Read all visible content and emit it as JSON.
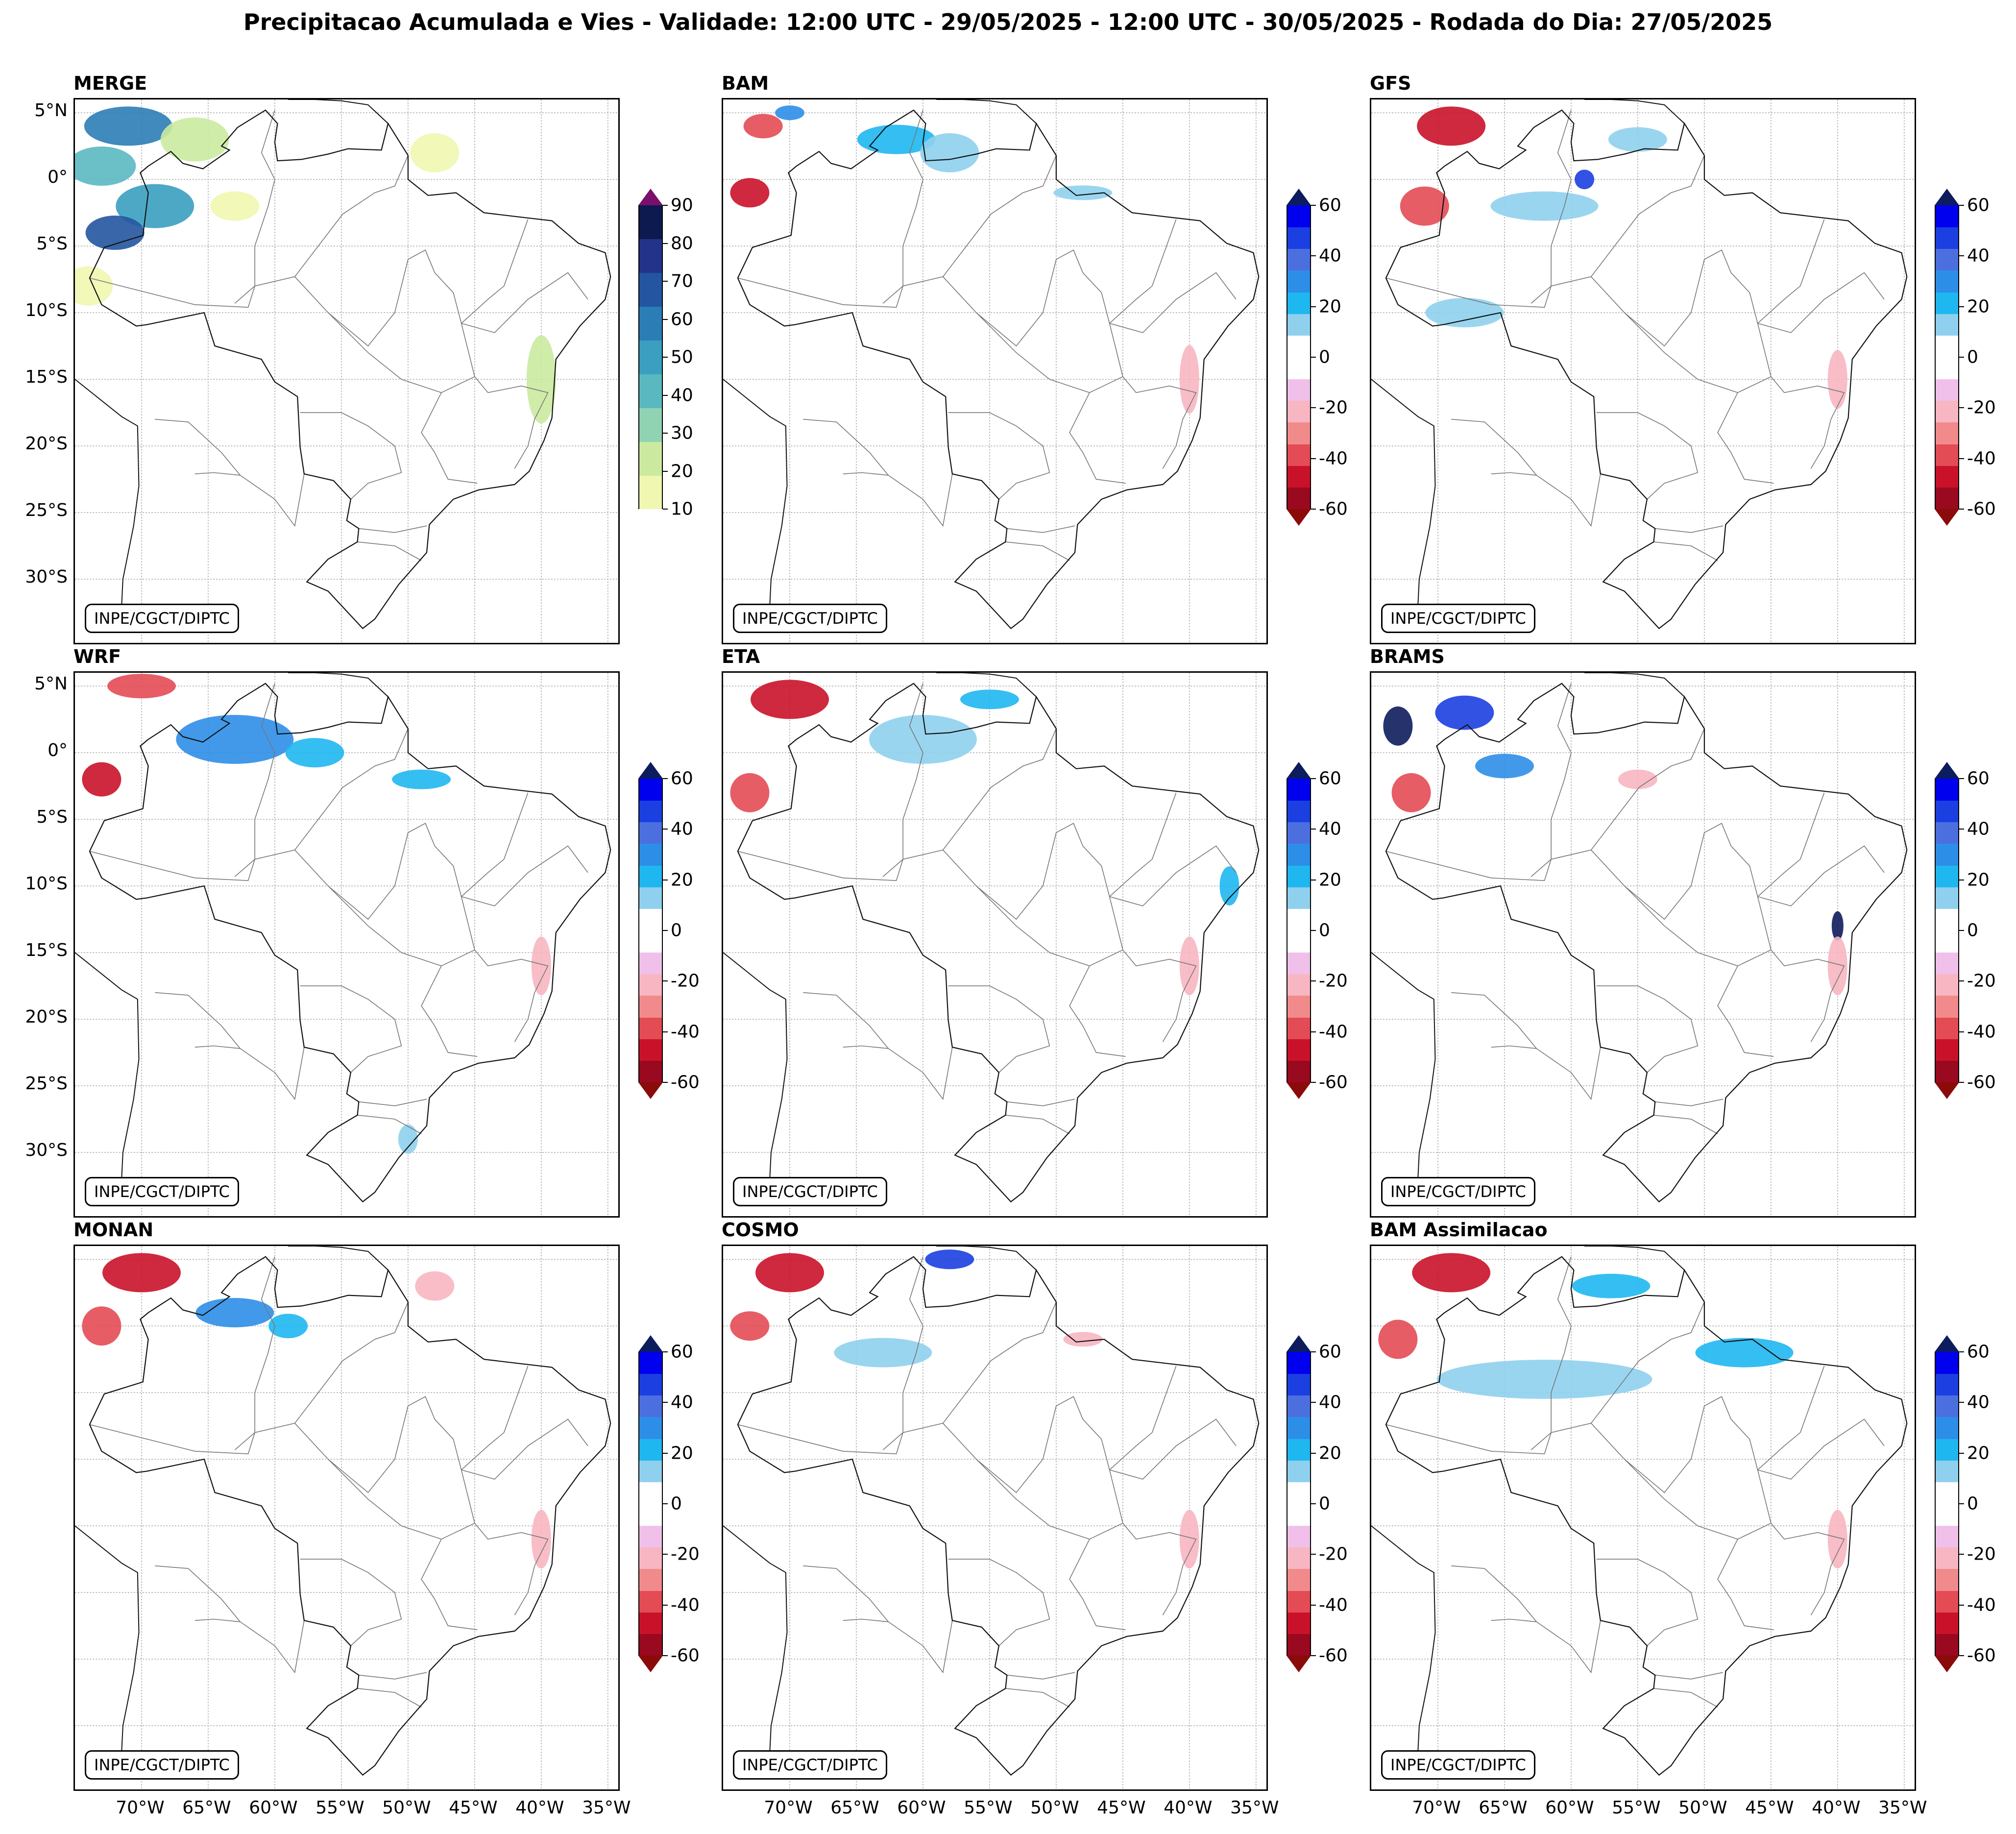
{
  "title": "Precipitacao Acumulada e Vies - Validade: 12:00 UTC - 29/05/2025 - 12:00 UTC - 30/05/2025 - Rodada do Dia: 27/05/2025",
  "credit": "INPE/CGCT/DIPTC",
  "lat_labels": [
    "5°N",
    "0°",
    "5°S",
    "10°S",
    "15°S",
    "20°S",
    "25°S",
    "30°S"
  ],
  "lon_labels": [
    "70°W",
    "65°W",
    "60°W",
    "55°W",
    "50°W",
    "45°W",
    "40°W",
    "35°W"
  ],
  "map_extent": {
    "lon_min": -75,
    "lon_max": -34,
    "lat_min": -35,
    "lat_max": 6
  },
  "colorbars": {
    "merge": {
      "ticks": [
        "10",
        "20",
        "30",
        "40",
        "50",
        "60",
        "70",
        "80",
        "90"
      ],
      "colors": [
        "#eff7b0",
        "#cbeaa0",
        "#8fd3b3",
        "#5ab9c0",
        "#3a9fc0",
        "#2b7db6",
        "#2355a0",
        "#23338a",
        "#0d1a4f"
      ],
      "under_color": "#ffffff",
      "over_color": "#7a0f6e"
    },
    "bias": {
      "ticks": [
        "-60",
        "-40",
        "-20",
        "0",
        "20",
        "40",
        "60"
      ],
      "colors": [
        "#99091f",
        "#c91229",
        "#e34b55",
        "#f18b8b",
        "#f7b6c1",
        "#f0c0ea",
        "#ffffff",
        "#ffffff",
        "#8fd0ee",
        "#1fb7f0",
        "#2d8ee8",
        "#4c6fe0",
        "#1b3fe0",
        "#0000ee"
      ],
      "under_color": "#8b0a0a",
      "over_color": "#0d1c5c"
    }
  },
  "panels": [
    {
      "key": "merge",
      "title": "MERGE",
      "kind": "merge"
    },
    {
      "key": "bam",
      "title": "BAM",
      "kind": "bias"
    },
    {
      "key": "gfs",
      "title": "GFS",
      "kind": "bias"
    },
    {
      "key": "wrf",
      "title": "WRF",
      "kind": "bias"
    },
    {
      "key": "eta",
      "title": "ETA",
      "kind": "bias"
    },
    {
      "key": "brams",
      "title": "BRAMS",
      "kind": "bias"
    },
    {
      "key": "monan",
      "title": "MONAN",
      "kind": "bias"
    },
    {
      "key": "cosmo",
      "title": "COSMO",
      "kind": "bias"
    },
    {
      "key": "bam_assim",
      "title": "BAM Assimilacao",
      "kind": "bias"
    }
  ]
}
